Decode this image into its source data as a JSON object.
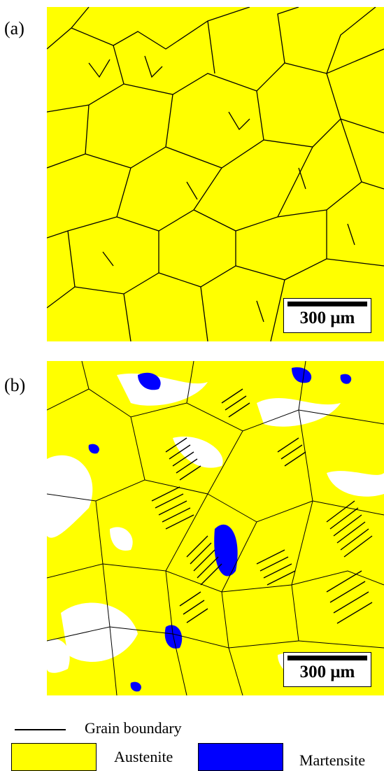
{
  "panels": {
    "a": {
      "label": "(a)",
      "scale_bar": "300 μm"
    },
    "b": {
      "label": "(b)",
      "scale_bar": "300 μm"
    }
  },
  "legend": {
    "grain_boundary": "Grain boundary",
    "austenite": "Austenite",
    "martensite": "Martensite"
  },
  "colors": {
    "austenite": "#ffff00",
    "martensite": "#0000ff",
    "unindexed": "#ffffff",
    "boundary": "#000000"
  }
}
